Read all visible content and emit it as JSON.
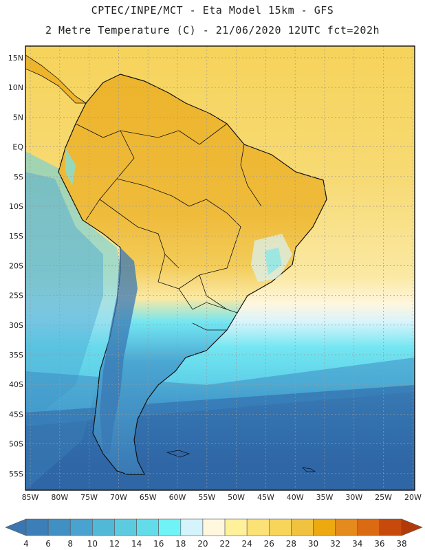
{
  "title_line1": "CPTEC/INPE/MCT -  Eta Model 15km - GFS",
  "title_line2": "2 Metre Temperature (C) - 21/06/2020 12UTC fct=202h",
  "lat_labels": [
    "15N",
    "10N",
    "5N",
    "EQ",
    "5S",
    "10S",
    "15S",
    "20S",
    "25S",
    "30S",
    "35S",
    "40S",
    "45S",
    "50S",
    "55S"
  ],
  "lon_labels": [
    "85W",
    "80W",
    "75W",
    "70W",
    "65W",
    "60W",
    "55W",
    "50W",
    "45W",
    "40W",
    "35W",
    "30W",
    "25W",
    "20W"
  ],
  "colorbar": {
    "ticks": [
      "4",
      "6",
      "8",
      "10",
      "12",
      "14",
      "16",
      "18",
      "20",
      "22",
      "24",
      "26",
      "28",
      "30",
      "32",
      "34",
      "36",
      "38"
    ],
    "colors": [
      "#3a76b0",
      "#3c7fb8",
      "#4190c4",
      "#49a2cf",
      "#52b8d8",
      "#5ccbe0",
      "#63dcea",
      "#6ff3f6",
      "#d4f3fb",
      "#fff8df",
      "#fff09a",
      "#fbe176",
      "#f6d55a",
      "#f0c23f",
      "#eca910",
      "#e58a1c",
      "#dc6a12",
      "#c74a0c",
      "#b23a08"
    ]
  },
  "map_colors": {
    "ocean_cold": "#2f66a6",
    "ocean_cool": "#3a86c0",
    "ocean_mid": "#4aa6d2",
    "ocean_mild": "#5fd0e8",
    "ocean_warm_cyan": "#72e6f2",
    "ocean_pale": "#d9f4fb",
    "ocean_cream": "#fff6de",
    "ocean_warm": "#f7dc7a",
    "land_warm": "#f3cc5a",
    "land_hot": "#edb42c",
    "andes_cold": "#3a78b4",
    "border": "#111111",
    "grid": "#9a9a9a"
  }
}
